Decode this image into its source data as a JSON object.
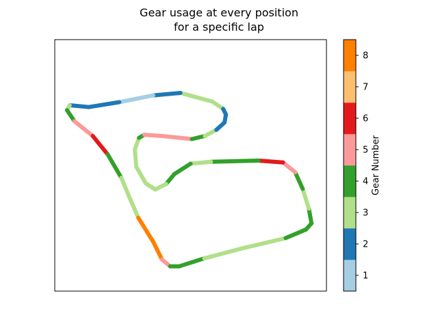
{
  "chart_data": {
    "type": "line",
    "title_lines": [
      "Gear usage at every position",
      "for a specific lap"
    ],
    "colorbar": {
      "label": "Gear Number",
      "ticks": [
        "1",
        "2",
        "3",
        "4",
        "5",
        "6",
        "7",
        "8"
      ],
      "colors": [
        "#a6cee3",
        "#1f78b4",
        "#b2df8a",
        "#33a02c",
        "#fb9a99",
        "#e31a1c",
        "#fdbf6f",
        "#ff7f00"
      ]
    },
    "axes": {
      "show_ticks": false
    },
    "track": {
      "x_range": [
        0,
        400
      ],
      "y_range": [
        0,
        320
      ],
      "points": [
        [
          248,
          46
        ],
        [
          232,
          34
        ],
        [
          185,
          20
        ],
        [
          145,
          24
        ],
        [
          95,
          35
        ],
        [
          50,
          43
        ],
        [
          22,
          40
        ],
        [
          18,
          48
        ],
        [
          29,
          66
        ],
        [
          56,
          90
        ],
        [
          78,
          120
        ],
        [
          98,
          158
        ],
        [
          110,
          190
        ],
        [
          123,
          223
        ],
        [
          145,
          262
        ],
        [
          158,
          291
        ],
        [
          170,
          302
        ],
        [
          183,
          302
        ],
        [
          220,
          289
        ],
        [
          275,
          273
        ],
        [
          340,
          256
        ],
        [
          370,
          242
        ],
        [
          378,
          232
        ],
        [
          374,
          208
        ],
        [
          365,
          176
        ],
        [
          354,
          149
        ],
        [
          336,
          133
        ],
        [
          300,
          130
        ],
        [
          230,
          132
        ],
        [
          200,
          135
        ],
        [
          176,
          152
        ],
        [
          164,
          168
        ],
        [
          148,
          177
        ],
        [
          134,
          167
        ],
        [
          120,
          140
        ],
        [
          118,
          112
        ],
        [
          124,
          93
        ],
        [
          132,
          88
        ],
        [
          158,
          90
        ],
        [
          202,
          95
        ],
        [
          221,
          90
        ],
        [
          238,
          80
        ],
        [
          250,
          68
        ],
        [
          252,
          55
        ],
        [
          248,
          46
        ]
      ],
      "segment_gears": [
        3,
        3,
        2,
        1,
        2,
        2,
        3,
        4,
        5,
        6,
        4,
        3,
        3,
        8,
        8,
        5,
        4,
        4,
        3,
        3,
        4,
        4,
        4,
        3,
        4,
        5,
        6,
        4,
        3,
        4,
        4,
        3,
        3,
        3,
        3,
        3,
        4,
        5,
        5,
        4,
        3,
        2,
        2,
        2
      ]
    }
  }
}
